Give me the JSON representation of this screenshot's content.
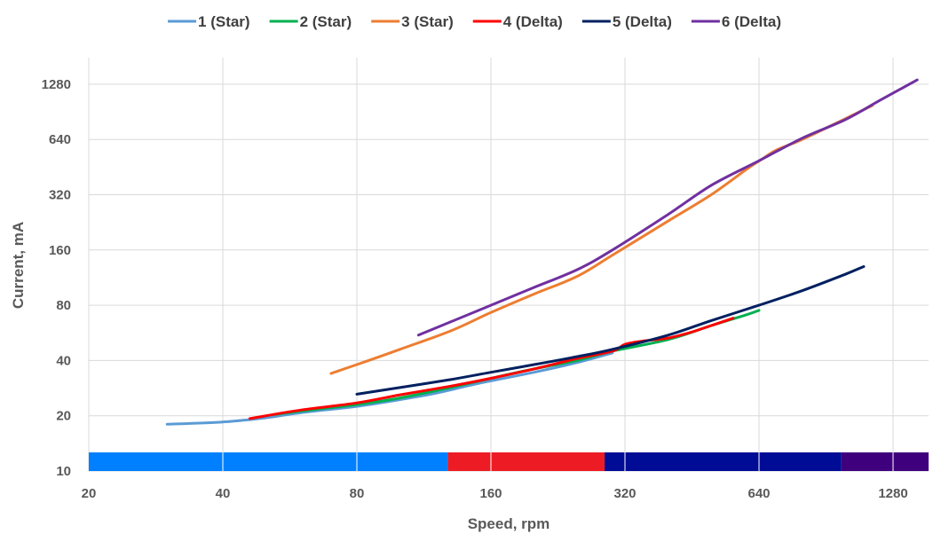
{
  "chart_data": {
    "type": "line",
    "title": "",
    "xlabel": "Speed, rpm",
    "ylabel": "Current, mA",
    "x_scale": "log2",
    "y_scale": "log2",
    "xlim": [
      20,
      1550
    ],
    "ylim": [
      10,
      1600
    ],
    "x_ticks": [
      "20",
      "40",
      "80",
      "160",
      "320",
      "640",
      "1280"
    ],
    "y_ticks": [
      "10",
      "20",
      "40",
      "80",
      "160",
      "320",
      "640",
      "1280"
    ],
    "grid": true,
    "legend_position": "top",
    "series": [
      {
        "name": "1 (Star)",
        "color": "#5b9bd5",
        "x": [
          30,
          40,
          50,
          60,
          80,
          100,
          120,
          150,
          200,
          250,
          300
        ],
        "y": [
          18,
          18.5,
          19.5,
          20.8,
          22.5,
          24.5,
          26.5,
          30,
          34.5,
          39,
          44
        ]
      },
      {
        "name": "2 (Star)",
        "color": "#00b050",
        "x": [
          52,
          65,
          80,
          100,
          130,
          160,
          200,
          250,
          300,
          400,
          500,
          600,
          640
        ],
        "y": [
          20.3,
          21.7,
          23,
          25,
          28.5,
          32,
          36,
          40,
          45,
          52,
          62,
          71,
          75
        ]
      },
      {
        "name": "3 (Star)",
        "color": "#ed7d31",
        "x": [
          70,
          80,
          100,
          130,
          160,
          200,
          250,
          300,
          400,
          500,
          600,
          650,
          700,
          800,
          1000,
          1150
        ],
        "y": [
          34,
          38,
          46,
          58,
          73,
          92,
          115,
          150,
          230,
          320,
          440,
          500,
          560,
          640,
          830,
          980
        ]
      },
      {
        "name": "4 (Delta)",
        "color": "#ff0000",
        "x": [
          46,
          60,
          80,
          100,
          130,
          160,
          200,
          250,
          300,
          320,
          350,
          400,
          450,
          500,
          560
        ],
        "y": [
          19.3,
          21.5,
          23.5,
          26,
          29,
          32,
          36,
          41,
          45,
          49,
          51,
          53,
          57,
          62,
          68
        ]
      },
      {
        "name": "5 (Delta)",
        "color": "#002060",
        "x": [
          80,
          100,
          130,
          160,
          200,
          250,
          300,
          400,
          500,
          640,
          800,
          1000,
          1100
        ],
        "y": [
          26.2,
          28.5,
          31.5,
          34.5,
          38,
          42,
          46,
          55,
          66,
          80,
          96,
          118,
          130
        ]
      },
      {
        "name": "6 (Delta)",
        "color": "#7030a0",
        "x": [
          110,
          130,
          160,
          200,
          250,
          300,
          400,
          500,
          640,
          800,
          1000,
          1200,
          1450
        ],
        "y": [
          55,
          65,
          80,
          100,
          125,
          160,
          250,
          360,
          490,
          650,
          820,
          1050,
          1350
        ]
      }
    ],
    "speed_bands": [
      {
        "color": "#0080ff",
        "x_start": 20,
        "x_end": 128
      },
      {
        "color": "#ed1c24",
        "x_start": 128,
        "x_end": 288
      },
      {
        "color": "#000c96",
        "x_start": 288,
        "x_end": 980
      },
      {
        "color": "#3f007d",
        "x_start": 980,
        "x_end": 1550
      }
    ]
  }
}
